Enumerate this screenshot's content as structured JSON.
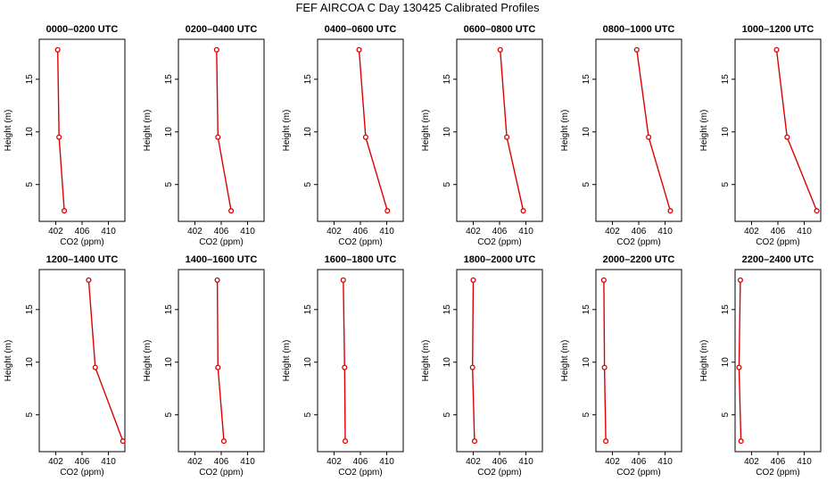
{
  "title": "FEF AIRCOA C  Day 130425  Calibrated Profiles",
  "colors": {
    "series": "#dd0000",
    "axis": "#000000"
  },
  "chart_data": {
    "type": "line",
    "xlabel": "CO2 (ppm)",
    "ylabel": "Height (m)",
    "xlim": [
      399.5,
      412.5
    ],
    "ylim": [
      1.5,
      18.8
    ],
    "xticks": [
      402,
      406,
      410
    ],
    "yticks": [
      5,
      10,
      15
    ],
    "heights": [
      17.8,
      9.5,
      2.5
    ],
    "panels": [
      {
        "title": "0000–0200 UTC",
        "co2": [
          402.3,
          402.5,
          403.3
        ]
      },
      {
        "title": "0200–0400 UTC",
        "co2": [
          405.3,
          405.5,
          407.5
        ]
      },
      {
        "title": "0400–0600 UTC",
        "co2": [
          405.8,
          406.8,
          410.1
        ]
      },
      {
        "title": "0600–0800 UTC",
        "co2": [
          406.1,
          407.1,
          409.6
        ]
      },
      {
        "title": "0800–1000 UTC",
        "co2": [
          405.7,
          407.5,
          410.8
        ]
      },
      {
        "title": "1000–1200 UTC",
        "co2": [
          405.8,
          407.4,
          411.9
        ]
      },
      {
        "title": "1200–1400 UTC",
        "co2": [
          407.0,
          408.0,
          412.2
        ]
      },
      {
        "title": "1400–1600 UTC",
        "co2": [
          405.4,
          405.5,
          406.4
        ]
      },
      {
        "title": "1600–1800 UTC",
        "co2": [
          403.4,
          403.6,
          403.7
        ]
      },
      {
        "title": "1800–2000 UTC",
        "co2": [
          402.0,
          401.9,
          402.2
        ]
      },
      {
        "title": "2000–2200 UTC",
        "co2": [
          400.7,
          400.8,
          401.0
        ]
      },
      {
        "title": "2200–2400 UTC",
        "co2": [
          400.3,
          400.1,
          400.4
        ]
      }
    ]
  }
}
